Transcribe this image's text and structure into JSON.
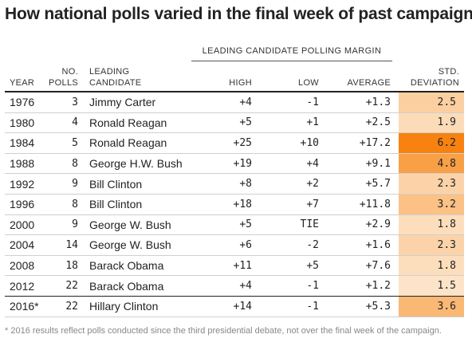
{
  "title": "How national polls varied in the final week of past campaigns",
  "group_header": "LEADING CANDIDATE POLLING MARGIN",
  "columns": {
    "year": "YEAR",
    "polls_line1": "NO.",
    "polls_line2": "POLLS",
    "cand_line1": "LEADING",
    "cand_line2": "CANDIDATE",
    "high": "HIGH",
    "low": "LOW",
    "average": "AVERAGE",
    "std_line1": "STD.",
    "std_line2": "DEVIATION"
  },
  "rows": [
    {
      "year": "1976",
      "polls": "3",
      "candidate": "Jimmy Carter",
      "high": "+4",
      "low": "-1",
      "average": "+1.3",
      "std": "2.5",
      "std_value": 2.5
    },
    {
      "year": "1980",
      "polls": "4",
      "candidate": "Ronald Reagan",
      "high": "+5",
      "low": "+1",
      "average": "+2.5",
      "std": "1.9",
      "std_value": 1.9
    },
    {
      "year": "1984",
      "polls": "5",
      "candidate": "Ronald Reagan",
      "high": "+25",
      "low": "+10",
      "average": "+17.2",
      "std": "6.2",
      "std_value": 6.2
    },
    {
      "year": "1988",
      "polls": "8",
      "candidate": "George H.W. Bush",
      "high": "+19",
      "low": "+4",
      "average": "+9.1",
      "std": "4.8",
      "std_value": 4.8
    },
    {
      "year": "1992",
      "polls": "9",
      "candidate": "Bill Clinton",
      "high": "+8",
      "low": "+2",
      "average": "+5.7",
      "std": "2.3",
      "std_value": 2.3
    },
    {
      "year": "1996",
      "polls": "8",
      "candidate": "Bill Clinton",
      "high": "+18",
      "low": "+7",
      "average": "+11.8",
      "std": "3.2",
      "std_value": 3.2
    },
    {
      "year": "2000",
      "polls": "9",
      "candidate": "George W. Bush",
      "high": "+5",
      "low": "TIE",
      "average": "+2.9",
      "std": "1.8",
      "std_value": 1.8
    },
    {
      "year": "2004",
      "polls": "14",
      "candidate": "George W. Bush",
      "high": "+6",
      "low": "-2",
      "average": "+1.6",
      "std": "2.3",
      "std_value": 2.3
    },
    {
      "year": "2008",
      "polls": "18",
      "candidate": "Barack Obama",
      "high": "+11",
      "low": "+5",
      "average": "+7.6",
      "std": "1.8",
      "std_value": 1.8
    },
    {
      "year": "2012",
      "polls": "22",
      "candidate": "Barack Obama",
      "high": "+4",
      "low": "-1",
      "average": "+1.2",
      "std": "1.5",
      "std_value": 1.5
    },
    {
      "year": "2016*",
      "polls": "22",
      "candidate": "Hillary Clinton",
      "high": "+14",
      "low": "-1",
      "average": "+5.3",
      "std": "3.6",
      "std_value": 3.6
    }
  ],
  "std_colors": {
    "low": "#fde4c8",
    "high": "#f7820f"
  },
  "footnote": "* 2016 results reflect polls conducted since the third presidential debate, not over the final week of the campaign."
}
